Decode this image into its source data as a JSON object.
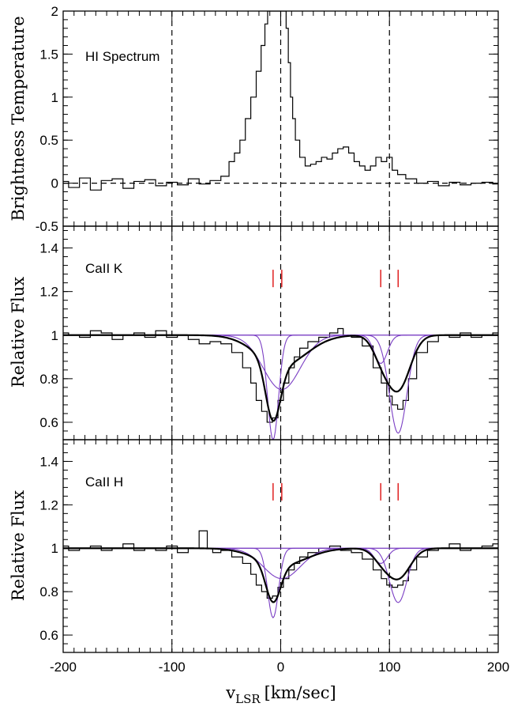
{
  "chart_data": [
    {
      "type": "line",
      "panel": "top",
      "annotation": "HI Spectrum",
      "ylabel": "Brightness Temperature",
      "xlim": [
        -200,
        200
      ],
      "ylim": [
        -0.5,
        2
      ],
      "yticks": [
        -0.5,
        0,
        0.5,
        1,
        1.5,
        2
      ],
      "ytick_labels": [
        "-0.5",
        "0",
        "0.5",
        "1",
        "1.5",
        "2"
      ],
      "reference_lines": {
        "vertical": [
          -100,
          0,
          100
        ],
        "horizontal": [
          0
        ]
      },
      "series": [
        {
          "style": "histogram",
          "x": [
            -200,
            -190,
            -180,
            -170,
            -160,
            -150,
            -140,
            -130,
            -120,
            -110,
            -100,
            -90,
            -80,
            -70,
            -60,
            -50,
            -45,
            -40,
            -35,
            -30,
            -25,
            -20,
            -16,
            -13,
            -11,
            -9,
            4,
            6,
            8,
            10,
            12,
            15,
            20,
            25,
            30,
            35,
            40,
            45,
            50,
            55,
            60,
            65,
            70,
            75,
            80,
            85,
            90,
            95,
            100,
            105,
            110,
            120,
            130,
            140,
            150,
            160,
            170,
            180,
            190,
            200
          ],
          "values": [
            0.02,
            -0.05,
            0.06,
            -0.08,
            0.03,
            0.05,
            -0.06,
            0.02,
            0.04,
            -0.03,
            0.01,
            -0.02,
            0.05,
            -0.01,
            0.03,
            0.08,
            0.25,
            0.35,
            0.5,
            0.75,
            1.0,
            1.3,
            1.6,
            1.85,
            2.0,
            2.0,
            2.0,
            1.8,
            1.4,
            1.0,
            0.75,
            0.5,
            0.3,
            0.2,
            0.22,
            0.25,
            0.3,
            0.28,
            0.35,
            0.4,
            0.42,
            0.35,
            0.25,
            0.2,
            0.15,
            0.2,
            0.3,
            0.25,
            0.3,
            0.15,
            0.1,
            0.05,
            0.0,
            0.02,
            -0.03,
            0.01,
            -0.02,
            0.0,
            0.01,
            -0.01
          ]
        }
      ]
    },
    {
      "type": "line",
      "panel": "middle",
      "annotation": "CaII K",
      "ylabel": "Relative Flux",
      "xlim": [
        -200,
        200
      ],
      "ylim": [
        0.52,
        1.5
      ],
      "yticks": [
        0.6,
        0.8,
        1,
        1.2,
        1.4
      ],
      "ytick_labels": [
        "0.6",
        "0.8",
        "1",
        "1.2",
        "1.4"
      ],
      "component_markers": [
        -7,
        1,
        92,
        108
      ],
      "reference_lines": {
        "vertical": [
          -100,
          0,
          100
        ]
      },
      "series": [
        {
          "role": "observed",
          "style": "histogram",
          "x": [
            -200,
            -190,
            -180,
            -170,
            -160,
            -150,
            -140,
            -130,
            -120,
            -110,
            -100,
            -90,
            -80,
            -70,
            -60,
            -50,
            -40,
            -30,
            -25,
            -20,
            -15,
            -10,
            -5,
            0,
            5,
            10,
            15,
            20,
            30,
            40,
            50,
            55,
            60,
            70,
            80,
            90,
            95,
            100,
            105,
            110,
            115,
            120,
            130,
            140,
            150,
            160,
            170,
            180,
            190,
            200
          ],
          "values": [
            1.01,
            1.0,
            0.99,
            1.02,
            1.01,
            0.98,
            1.0,
            1.01,
            0.99,
            1.02,
            0.99,
            1.0,
            0.98,
            0.96,
            0.97,
            0.96,
            0.92,
            0.85,
            0.78,
            0.7,
            0.65,
            0.6,
            0.62,
            0.7,
            0.78,
            0.85,
            0.9,
            0.94,
            0.97,
            0.99,
            1.01,
            1.03,
            1.0,
            0.99,
            0.95,
            0.85,
            0.78,
            0.72,
            0.68,
            0.66,
            0.7,
            0.8,
            0.92,
            0.97,
            1.0,
            0.99,
            1.01,
            0.99,
            1.0,
            1.01
          ]
        },
        {
          "role": "fit",
          "model": "sum of gaussian components"
        },
        {
          "role": "components",
          "centers": [
            -7,
            1,
            92,
            108
          ],
          "depths": [
            0.48,
            0.25,
            0.13,
            0.45
          ],
          "sigmas": [
            5,
            17,
            6,
            8
          ]
        }
      ]
    },
    {
      "type": "line",
      "panel": "bottom",
      "annotation": "CaII H",
      "ylabel": "Relative Flux",
      "xlabel_main": "v",
      "xlabel_sub": "LSR",
      "xlabel_unit": "[km/sec]",
      "xlim": [
        -200,
        200
      ],
      "xticks": [
        -200,
        -100,
        0,
        100,
        200
      ],
      "xtick_labels": [
        "-200",
        "-100",
        "0",
        "100",
        "200"
      ],
      "ylim": [
        0.52,
        1.5
      ],
      "yticks": [
        0.6,
        0.8,
        1,
        1.2,
        1.4
      ],
      "ytick_labels": [
        "0.6",
        "0.8",
        "1",
        "1.2",
        "1.4"
      ],
      "component_markers": [
        -7,
        1,
        92,
        108
      ],
      "reference_lines": {
        "vertical": [
          -100,
          0,
          100
        ]
      },
      "series": [
        {
          "role": "observed",
          "style": "histogram",
          "x": [
            -200,
            -190,
            -180,
            -170,
            -160,
            -150,
            -140,
            -130,
            -120,
            -110,
            -100,
            -90,
            -80,
            -70,
            -65,
            -60,
            -50,
            -40,
            -30,
            -25,
            -20,
            -15,
            -10,
            -5,
            0,
            5,
            10,
            15,
            20,
            30,
            40,
            50,
            60,
            70,
            80,
            90,
            95,
            100,
            105,
            110,
            115,
            120,
            130,
            140,
            150,
            160,
            170,
            180,
            190,
            200
          ],
          "values": [
            1.01,
            0.99,
            1.0,
            1.01,
            0.99,
            1.0,
            1.02,
            0.99,
            1.0,
            0.99,
            1.01,
            0.98,
            1.0,
            1.08,
            1.0,
            0.98,
            0.99,
            0.96,
            0.93,
            0.88,
            0.83,
            0.8,
            0.77,
            0.78,
            0.82,
            0.86,
            0.9,
            0.93,
            0.96,
            0.98,
            1.0,
            1.01,
            0.99,
            0.98,
            0.95,
            0.9,
            0.86,
            0.83,
            0.82,
            0.83,
            0.85,
            0.9,
            0.96,
            0.99,
            1.0,
            1.02,
            0.99,
            1.0,
            1.01,
            1.02
          ]
        },
        {
          "role": "fit",
          "model": "sum of gaussian components"
        },
        {
          "role": "components",
          "centers": [
            -7,
            1,
            92,
            108
          ],
          "depths": [
            0.32,
            0.14,
            0.07,
            0.25
          ],
          "sigmas": [
            5,
            17,
            6,
            8
          ]
        }
      ]
    }
  ],
  "colors": {
    "data": "#000000",
    "fit": "#000000",
    "components": "#7b3fc4",
    "markers": "#e02020"
  }
}
